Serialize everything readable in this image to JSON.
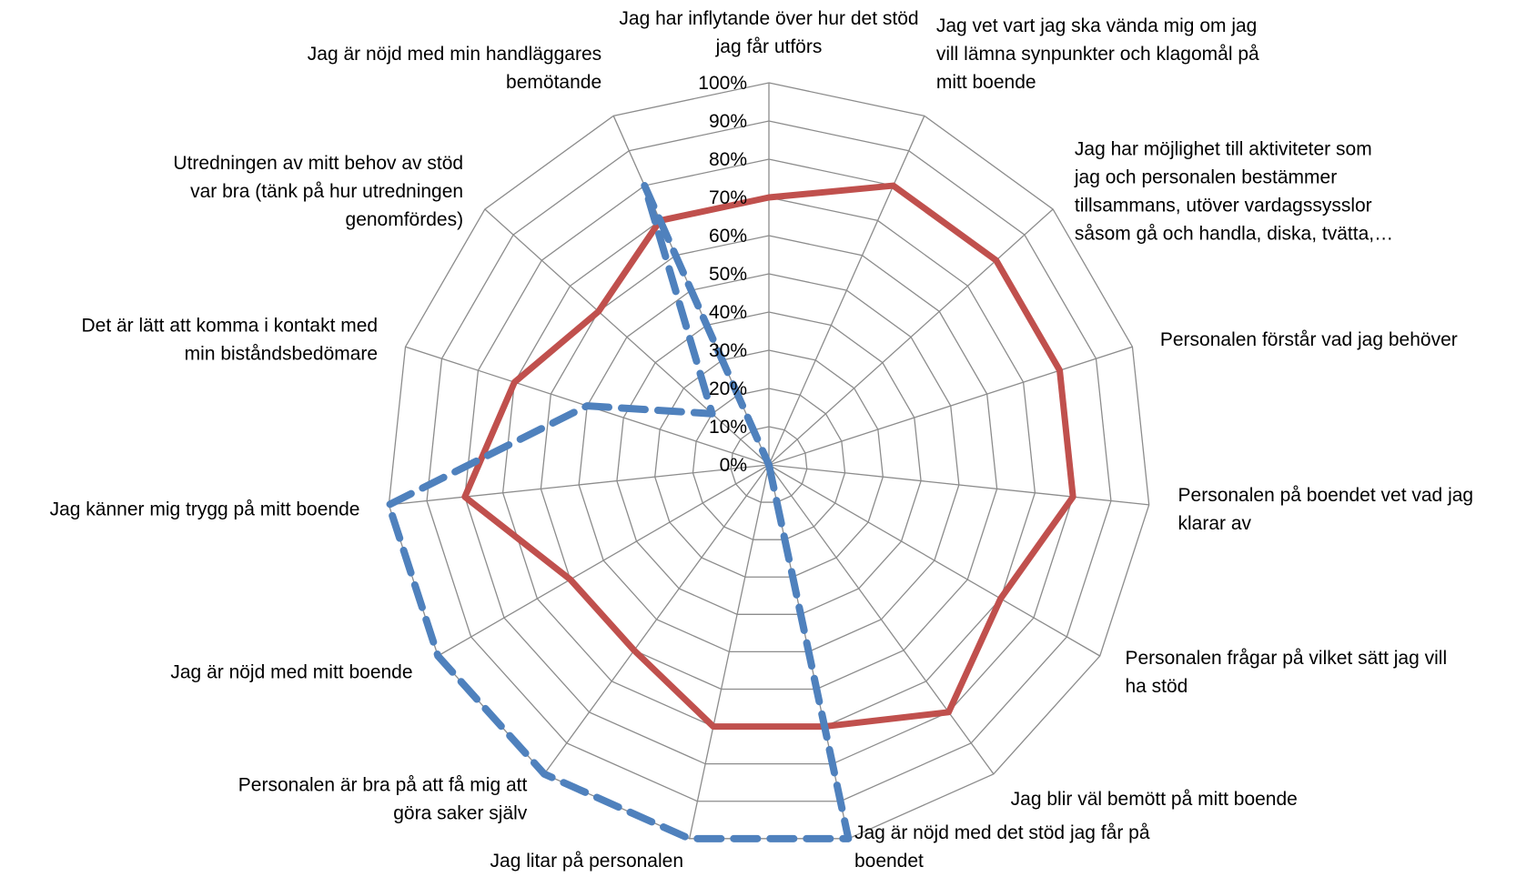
{
  "chart_data": {
    "type": "radar",
    "title": "",
    "categories": [
      [
        "Jag har inflytande över hur det stöd",
        "jag får utförs"
      ],
      [
        "Jag vet vart jag ska vända mig om jag",
        "vill lämna synpunkter och klagomål på",
        "mitt boende"
      ],
      [
        "Jag har möjlighet till aktiviteter som",
        "jag och personalen bestämmer",
        "tillsammans, utöver vardagssysslor",
        "såsom gå och handla, diska, tvätta,…"
      ],
      [
        "Personalen förstår vad jag behöver"
      ],
      [
        "Personalen på boendet vet vad jag",
        "klarar av"
      ],
      [
        "Personalen frågar på vilket sätt jag vill",
        "ha stöd"
      ],
      [
        "Jag blir väl bemött på mitt boende"
      ],
      [
        "Jag är nöjd med det stöd jag får på",
        "boendet"
      ],
      [
        "Jag litar på personalen"
      ],
      [
        "Personalen är bra på att få mig att",
        "göra saker själv"
      ],
      [
        "Jag är nöjd med mitt boende"
      ],
      [
        "Jag känner mig trygg på mitt boende"
      ],
      [
        "Det är lätt att komma i kontakt med",
        "min biståndsbedömare"
      ],
      [
        "Utredningen av mitt behov av stöd",
        "var bra (tänk på hur utredningen",
        "genomfördes)"
      ],
      [
        "Jag är nöjd med min handläggares",
        "bemötande"
      ]
    ],
    "tick_labels": [
      "0%",
      "10%",
      "20%",
      "30%",
      "40%",
      "50%",
      "60%",
      "70%",
      "80%",
      "90%",
      "100%"
    ],
    "rlim": [
      0,
      100
    ],
    "grid": true,
    "legend": "none",
    "series": [
      {
        "color": "#c0504d",
        "style": "solid",
        "values": [
          70,
          80,
          80,
          80,
          80,
          70,
          80,
          70,
          70,
          60,
          60,
          80,
          70,
          60,
          70
        ]
      },
      {
        "color": "#4f81bd",
        "style": "dashed",
        "values": [
          0,
          0,
          0,
          0,
          0,
          0,
          0,
          100,
          100,
          100,
          100,
          100,
          50,
          20,
          80
        ]
      }
    ]
  }
}
